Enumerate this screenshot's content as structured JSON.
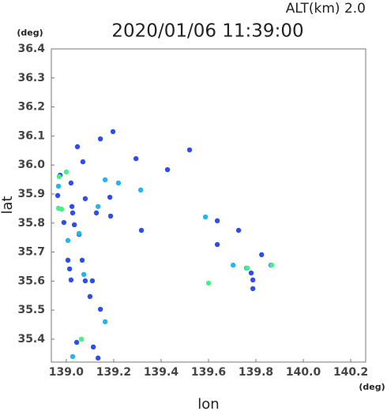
{
  "chart_data": {
    "type": "scatter",
    "title": "2020/01/06 11:39:00",
    "subtitle": "ALT(km)  2.0",
    "x_label": "lon",
    "y_label": "lat",
    "x_unit": "(deg)",
    "y_unit": "(deg)",
    "xlim": [
      138.937,
      140.263
    ],
    "ylim": [
      35.321,
      36.4
    ],
    "xticks": [
      {
        "value": 139,
        "label": "139.0"
      },
      139.2,
      139.4,
      139.6,
      139.8,
      {
        "value": 140,
        "label": "140.0"
      },
      140.2
    ],
    "yticks": [
      36.4,
      36.3,
      36.2,
      36.1,
      {
        "value": 36,
        "label": "36.0"
      },
      35.9,
      35.8,
      35.7,
      35.6,
      35.5,
      35.4
    ],
    "series": [
      {
        "color": "#2f4cf0",
        "x": [
          139.047,
          139.07,
          139.144,
          139.197,
          139.294,
          138.974,
          138.964,
          139.02,
          139.08,
          139.024,
          139.027,
          138.99,
          139.054,
          139.034,
          139.184,
          139.127,
          139.187,
          139.317,
          139.007,
          139.067,
          139.02,
          139.08,
          139.014,
          139.11,
          139.1,
          139.144,
          139.044,
          139.114,
          139.134,
          139.637,
          139.727,
          139.824,
          139.78,
          139.864,
          139.787,
          139.787,
          139.637,
          139.427,
          139.52
        ],
        "y": [
          36.063,
          36.011,
          36.09,
          36.115,
          36.022,
          35.965,
          35.895,
          35.938,
          35.884,
          35.857,
          35.835,
          35.802,
          35.761,
          35.794,
          35.889,
          35.835,
          35.824,
          35.775,
          35.672,
          35.672,
          35.604,
          35.601,
          35.642,
          35.601,
          35.547,
          35.503,
          35.389,
          35.373,
          35.335,
          35.808,
          35.775,
          35.691,
          35.628,
          35.655,
          35.604,
          35.574,
          35.726,
          35.984,
          36.052
        ]
      },
      {
        "color": "#22b4f5",
        "x": [
          138.967,
          139.164,
          139.22,
          139.314,
          139.054,
          139.007,
          139.134,
          139.164,
          139.587,
          139.704,
          139.76,
          139.074,
          139.027
        ],
        "y": [
          35.927,
          35.949,
          35.938,
          35.914,
          35.764,
          35.74,
          35.857,
          35.46,
          35.821,
          35.655,
          35.645,
          35.623,
          35.34
        ]
      },
      {
        "color": "#44f088",
        "x": [
          139.0,
          138.97,
          138.967,
          138.98,
          139.764,
          139.867,
          139.064,
          139.6
        ],
        "y": [
          35.976,
          35.96,
          35.851,
          35.848,
          35.645,
          35.655,
          35.4,
          35.593
        ]
      }
    ]
  }
}
